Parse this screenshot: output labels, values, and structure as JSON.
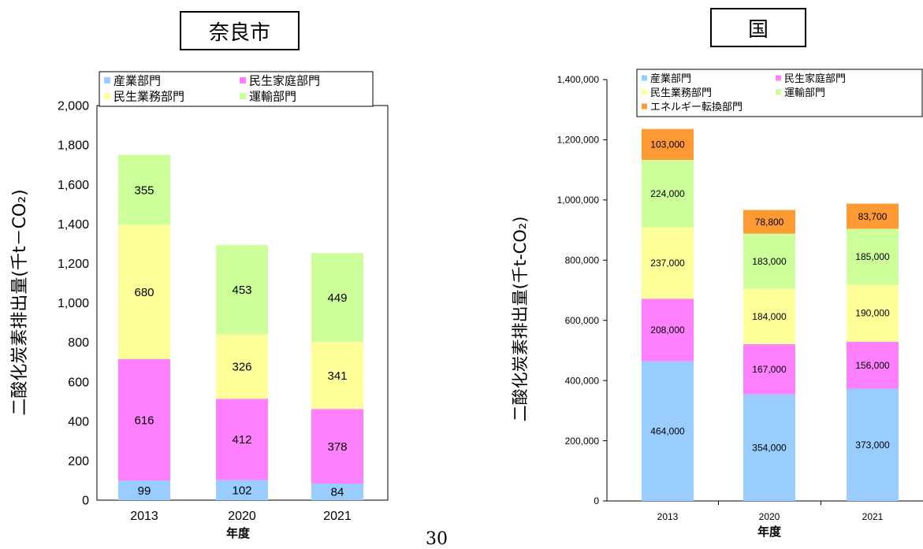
{
  "page_number": "30",
  "chart_data": [
    {
      "type": "bar",
      "stacked": true,
      "title": "奈良市",
      "xlabel": "年度",
      "ylabel": "二酸化炭素排出量(千t－CO₂)",
      "ylim": [
        0,
        2000
      ],
      "yticks": [
        0,
        200,
        400,
        600,
        800,
        1000,
        1200,
        1400,
        1600,
        1800,
        2000
      ],
      "ytick_labels": [
        "0",
        "200",
        "400",
        "600",
        "800",
        "1,000",
        "1,200",
        "1,400",
        "1,600",
        "1,800",
        "2,000"
      ],
      "categories": [
        "2013",
        "2020",
        "2021"
      ],
      "legend_position": "top",
      "series": [
        {
          "name": "産業部門",
          "color": "#99ccff",
          "values": [
            99,
            102,
            84
          ],
          "labels": [
            "99",
            "102",
            "84"
          ]
        },
        {
          "name": "民生家庭部門",
          "color": "#ff80ff",
          "values": [
            616,
            412,
            378
          ],
          "labels": [
            "616",
            "412",
            "378"
          ]
        },
        {
          "name": "民生業務部門",
          "color": "#ffff99",
          "values": [
            680,
            326,
            341
          ],
          "labels": [
            "680",
            "326",
            "341"
          ]
        },
        {
          "name": "運輸部門",
          "color": "#ccff99",
          "values": [
            355,
            453,
            449
          ],
          "labels": [
            "355",
            "453",
            "449"
          ]
        }
      ]
    },
    {
      "type": "bar",
      "stacked": true,
      "title": "国",
      "xlabel": "年度",
      "ylabel": "二酸化炭素排出量(千t-CO₂)",
      "ylim": [
        0,
        1400000
      ],
      "yticks": [
        0,
        200000,
        400000,
        600000,
        800000,
        1000000,
        1200000,
        1400000
      ],
      "ytick_labels": [
        "0",
        "200,000",
        "400,000",
        "600,000",
        "800,000",
        "1,000,000",
        "1,200,000",
        "1,400,000"
      ],
      "categories": [
        "2013",
        "2020",
        "2021"
      ],
      "legend_position": "top",
      "series": [
        {
          "name": "産業部門",
          "color": "#99ccff",
          "values": [
            464000,
            354000,
            373000
          ],
          "labels": [
            "464,000",
            "354,000",
            "373,000"
          ]
        },
        {
          "name": "民生家庭部門",
          "color": "#ff80ff",
          "values": [
            208000,
            167000,
            156000
          ],
          "labels": [
            "208,000",
            "167,000",
            "156,000"
          ]
        },
        {
          "name": "民生業務部門",
          "color": "#ffff99",
          "values": [
            237000,
            184000,
            190000
          ],
          "labels": [
            "237,000",
            "184,000",
            "190,000"
          ]
        },
        {
          "name": "運輸部門",
          "color": "#ccff99",
          "values": [
            224000,
            183000,
            185000
          ],
          "labels": [
            "224,000",
            "183,000",
            "185,000"
          ]
        },
        {
          "name": "エネルギー転換部門",
          "color": "#ff9933",
          "values": [
            103000,
            78800,
            83700
          ],
          "labels": [
            "103,000",
            "78,800",
            "83,700"
          ]
        }
      ]
    }
  ]
}
